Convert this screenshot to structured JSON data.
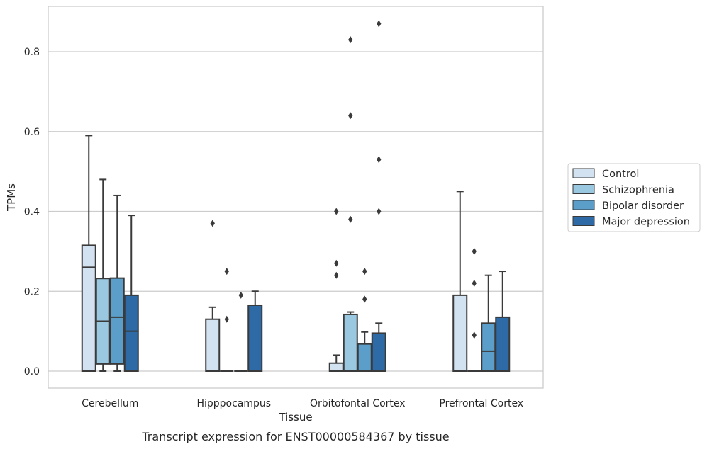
{
  "caption": "Transcript expression for ENST00000584367 by tissue",
  "chart_data": {
    "type": "box",
    "xlabel": "Tissue",
    "ylabel": "TPMs",
    "ylim": [
      -0.042,
      0.918
    ],
    "yticks": [
      0.0,
      0.2,
      0.4,
      0.6,
      0.8
    ],
    "ytick_labels": [
      "0.0",
      "0.2",
      "0.4",
      "0.6",
      "0.8"
    ],
    "grid": "horizontal",
    "legend_position": "right",
    "categories": [
      "Cerebellum",
      "Hipppocampus",
      "Orbitofontal Cortex",
      "Prefrontal Cortex"
    ],
    "series": [
      {
        "name": "Control",
        "color": "#d2e2f0",
        "boxes": [
          {
            "whislo": 0.0,
            "q1": 0.0,
            "med": 0.26,
            "q3": 0.315,
            "whishi": 0.59,
            "fliers": []
          },
          {
            "whislo": 0.0,
            "q1": 0.0,
            "med": 0.0,
            "q3": 0.13,
            "whishi": 0.16,
            "fliers": [
              0.37
            ]
          },
          {
            "whislo": 0.0,
            "q1": 0.0,
            "med": 0.0,
            "q3": 0.02,
            "whishi": 0.04,
            "fliers": [
              0.24,
              0.27,
              0.4
            ]
          },
          {
            "whislo": 0.0,
            "q1": 0.0,
            "med": 0.0,
            "q3": 0.19,
            "whishi": 0.45,
            "fliers": []
          }
        ]
      },
      {
        "name": "Schizophrenia",
        "color": "#9ac8e0",
        "boxes": [
          {
            "whislo": 0.0,
            "q1": 0.018,
            "med": 0.125,
            "q3": 0.232,
            "whishi": 0.48,
            "fliers": []
          },
          {
            "whislo": 0.0,
            "q1": 0.0,
            "med": 0.0,
            "q3": 0.0,
            "whishi": 0.0,
            "fliers": [
              0.13,
              0.25
            ]
          },
          {
            "whislo": 0.0,
            "q1": 0.0,
            "med": 0.0,
            "q3": 0.142,
            "whishi": 0.148,
            "fliers": [
              0.38,
              0.64,
              0.83
            ]
          },
          {
            "whislo": 0.0,
            "q1": 0.0,
            "med": 0.0,
            "q3": 0.0,
            "whishi": 0.0,
            "fliers": [
              0.09,
              0.22,
              0.3
            ]
          }
        ]
      },
      {
        "name": "Bipolar disorder",
        "color": "#5a9ec9",
        "boxes": [
          {
            "whislo": 0.0,
            "q1": 0.018,
            "med": 0.135,
            "q3": 0.233,
            "whishi": 0.44,
            "fliers": []
          },
          {
            "whislo": 0.0,
            "q1": 0.0,
            "med": 0.0,
            "q3": 0.0,
            "whishi": 0.0,
            "fliers": [
              0.19
            ]
          },
          {
            "whislo": 0.0,
            "q1": 0.0,
            "med": 0.0,
            "q3": 0.068,
            "whishi": 0.098,
            "fliers": [
              0.18,
              0.25
            ]
          },
          {
            "whislo": 0.0,
            "q1": 0.0,
            "med": 0.05,
            "q3": 0.12,
            "whishi": 0.24,
            "fliers": []
          }
        ]
      },
      {
        "name": "Major depression",
        "color": "#2d6aa6",
        "boxes": [
          {
            "whislo": 0.0,
            "q1": 0.0,
            "med": 0.1,
            "q3": 0.19,
            "whishi": 0.39,
            "fliers": []
          },
          {
            "whislo": 0.0,
            "q1": 0.0,
            "med": 0.0,
            "q3": 0.165,
            "whishi": 0.2,
            "fliers": []
          },
          {
            "whislo": 0.0,
            "q1": 0.0,
            "med": 0.0,
            "q3": 0.095,
            "whishi": 0.12,
            "fliers": [
              0.4,
              0.53,
              0.87
            ]
          },
          {
            "whislo": 0.0,
            "q1": 0.0,
            "med": 0.0,
            "q3": 0.135,
            "whishi": 0.25,
            "fliers": []
          }
        ]
      }
    ]
  }
}
